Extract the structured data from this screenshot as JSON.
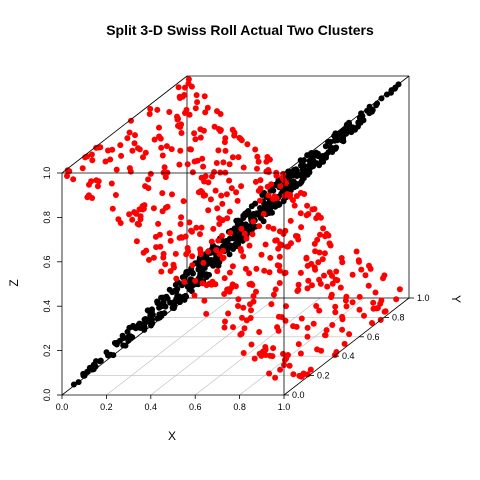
{
  "chart_data": {
    "type": "scatter",
    "projection": "3d",
    "title": "Split 3-D Swiss Roll Actual Two Clusters",
    "xlabel": "X",
    "ylabel": "Y",
    "zlabel": "Z",
    "xlim": [
      0,
      1
    ],
    "ylim": [
      0,
      1
    ],
    "zlim": [
      0,
      1
    ],
    "x_ticks": [
      "0.0",
      "0.2",
      "0.4",
      "0.6",
      "0.8",
      "1.0"
    ],
    "y_ticks": [
      "0.0",
      "0.2",
      "0.4",
      "0.6",
      "0.8",
      "1.0"
    ],
    "z_ticks": [
      "0.0",
      "0.2",
      "0.4",
      "0.6",
      "0.8",
      "1.0"
    ],
    "grid": true,
    "point_count_per_cluster": 500,
    "series": [
      {
        "color": "#000000",
        "shape": "diagonal plane through the cube, x = z, all y",
        "x_range": [
          0,
          1
        ],
        "y_range": [
          0,
          1
        ],
        "z_range": [
          0,
          1
        ]
      },
      {
        "color": "#ff0000",
        "shape": "two folded sheets crossing the diagonal plane, x + z = 1, all y",
        "x_range": [
          0,
          1
        ],
        "y_range": [
          0,
          1
        ],
        "z_range": [
          0,
          1
        ]
      }
    ]
  }
}
